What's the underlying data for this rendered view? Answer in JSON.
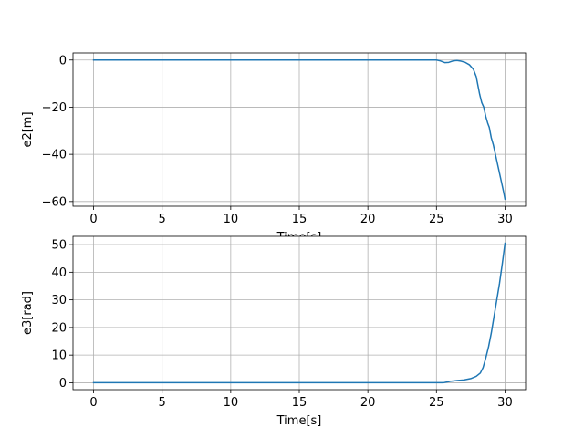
{
  "chart_data": [
    {
      "type": "line",
      "xlabel": "Time[s]",
      "ylabel": "e2[m]",
      "xlim": [
        -1.5,
        31.5
      ],
      "ylim": [
        -62,
        3
      ],
      "xticks": [
        0,
        5,
        10,
        15,
        20,
        25,
        30
      ],
      "yticks": [
        0,
        -20,
        -40,
        -60
      ],
      "ytick_labels": [
        "0",
        "−20",
        "−40",
        "−60"
      ],
      "grid": true,
      "color": "#1f77b4",
      "series": [
        {
          "x": [
            0,
            25,
            25.3,
            25.6,
            25.9,
            26.2,
            26.5,
            26.8,
            27.1,
            27.4,
            27.7,
            27.9,
            28.0,
            28.15,
            28.3,
            28.45,
            28.6,
            28.75,
            28.85,
            29.0,
            29.15,
            29.3,
            29.45,
            29.6,
            29.75,
            29.9,
            30.0
          ],
          "y": [
            0,
            0,
            -0.4,
            -1.1,
            -1.0,
            -0.4,
            -0.2,
            -0.5,
            -1.0,
            -2.0,
            -4.0,
            -7.0,
            -10.0,
            -14.5,
            -18.0,
            -20.0,
            -24.0,
            -27.0,
            -28.5,
            -33.0,
            -36.0,
            -40.0,
            -44.0,
            -48.0,
            -52.0,
            -56.0,
            -59.0
          ]
        }
      ]
    },
    {
      "type": "line",
      "xlabel": "Time[s]",
      "ylabel": "e3[rad]",
      "xlim": [
        -1.5,
        31.5
      ],
      "ylim": [
        -2.5,
        53.0
      ],
      "xticks": [
        0,
        5,
        10,
        15,
        20,
        25,
        30
      ],
      "yticks": [
        0,
        10,
        20,
        30,
        40,
        50
      ],
      "ytick_labels": [
        "0",
        "10",
        "20",
        "30",
        "40",
        "50"
      ],
      "grid": true,
      "color": "#1f77b4",
      "series": [
        {
          "x": [
            0,
            25.5,
            26.0,
            26.5,
            27.0,
            27.5,
            27.9,
            28.2,
            28.4,
            28.6,
            28.8,
            29.0,
            29.2,
            29.4,
            29.6,
            29.8,
            30.0
          ],
          "y": [
            0,
            0,
            0.5,
            0.8,
            1.0,
            1.5,
            2.3,
            3.5,
            5.5,
            9.0,
            13.0,
            18.0,
            24.0,
            30.0,
            36.0,
            43.0,
            50.5
          ]
        }
      ]
    }
  ]
}
